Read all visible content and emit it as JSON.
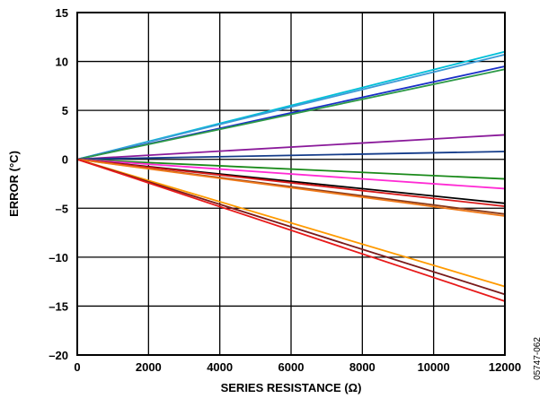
{
  "chart_data": {
    "type": "line",
    "title": "",
    "xlabel": "SERIES RESISTANCE (Ω)",
    "ylabel": "ERROR (°C)",
    "xlim": [
      0,
      12000
    ],
    "ylim": [
      -20,
      15
    ],
    "x_ticks": [
      0,
      2000,
      4000,
      6000,
      8000,
      10000,
      12000
    ],
    "y_ticks": [
      15,
      10,
      5,
      0,
      -5,
      -10,
      -15,
      -20
    ],
    "x_tick_labels": [
      "0",
      "2000",
      "4000",
      "6000",
      "8000",
      "10000",
      "12000"
    ],
    "y_tick_labels": [
      "15",
      "10",
      "5",
      "0",
      "–5",
      "–10",
      "–15",
      "–20"
    ],
    "grid": true,
    "legend": "none",
    "figure_id": "05747-062",
    "series": [
      {
        "color": "#00bfd8",
        "x": [
          0,
          12000
        ],
        "y": [
          0,
          11.0
        ]
      },
      {
        "color": "#3c9ad6",
        "x": [
          0,
          12000
        ],
        "y": [
          0,
          10.7
        ]
      },
      {
        "color": "#1a2fc8",
        "x": [
          0,
          12000
        ],
        "y": [
          0,
          9.5
        ]
      },
      {
        "color": "#2e9a48",
        "x": [
          0,
          12000
        ],
        "y": [
          0,
          9.2
        ]
      },
      {
        "color": "#8a1a9a",
        "x": [
          0,
          12000
        ],
        "y": [
          0,
          2.5
        ]
      },
      {
        "color": "#143c8a",
        "x": [
          0,
          12000
        ],
        "y": [
          0,
          0.8
        ]
      },
      {
        "color": "#1a8a1a",
        "x": [
          0,
          12000
        ],
        "y": [
          0,
          -2.0
        ]
      },
      {
        "color": "#ff2ad4",
        "x": [
          0,
          12000
        ],
        "y": [
          0,
          -3.0
        ]
      },
      {
        "color": "#000000",
        "x": [
          0,
          12000
        ],
        "y": [
          0,
          -4.5
        ]
      },
      {
        "color": "#d81a1a",
        "x": [
          0,
          12000
        ],
        "y": [
          0,
          -4.8
        ]
      },
      {
        "color": "#8a3a1a",
        "x": [
          0,
          12000
        ],
        "y": [
          0,
          -5.6
        ]
      },
      {
        "color": "#f07a1a",
        "x": [
          0,
          12000
        ],
        "y": [
          0,
          -5.8
        ]
      },
      {
        "color": "#ff9a00",
        "x": [
          0,
          12000
        ],
        "y": [
          0,
          -13.0
        ]
      },
      {
        "color": "#7a1a1a",
        "x": [
          0,
          12000
        ],
        "y": [
          0,
          -13.8
        ]
      },
      {
        "color": "#e81a1a",
        "x": [
          0,
          12000
        ],
        "y": [
          0,
          -14.5
        ]
      }
    ]
  }
}
